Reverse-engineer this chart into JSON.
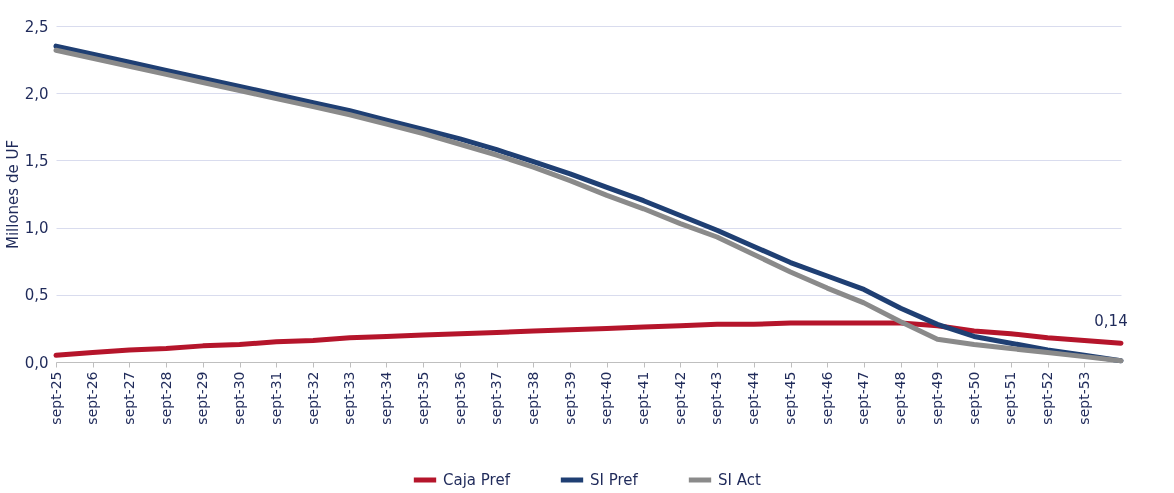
{
  "chart_data": {
    "type": "line",
    "ylabel": "Millones de UF",
    "x": [
      "2025-09",
      "2026-09",
      "2027-09",
      "2028-09",
      "2029-09",
      "2030-09",
      "2031-09",
      "2032-09",
      "2033-09",
      "2034-09",
      "2035-09",
      "2036-09",
      "2037-09",
      "2038-09",
      "2039-09",
      "2040-09",
      "2041-09",
      "2042-09",
      "2043-09",
      "2044-09",
      "2045-09",
      "2046-09",
      "2047-09",
      "2048-09",
      "2049-09",
      "2050-09",
      "2051-09",
      "2052-09",
      "2053-09",
      "2054-09"
    ],
    "series": [
      {
        "name": "Caja Pref",
        "color": "#b5152b",
        "values": [
          0.05,
          0.07,
          0.09,
          0.1,
          0.12,
          0.13,
          0.15,
          0.16,
          0.18,
          0.19,
          0.2,
          0.21,
          0.22,
          0.23,
          0.24,
          0.25,
          0.26,
          0.27,
          0.28,
          0.28,
          0.29,
          0.29,
          0.29,
          0.29,
          0.27,
          0.23,
          0.21,
          0.18,
          0.16,
          0.14
        ],
        "value_labels": [
          null,
          null,
          null,
          null,
          null,
          null,
          null,
          null,
          null,
          null,
          null,
          null,
          null,
          null,
          null,
          null,
          null,
          null,
          null,
          null,
          null,
          null,
          null,
          null,
          null,
          null,
          null,
          null,
          null,
          "0,14"
        ]
      },
      {
        "name": "SI Pref",
        "color": "#1f3f73",
        "values": [
          2.35,
          2.29,
          2.23,
          2.17,
          2.11,
          2.05,
          1.99,
          1.93,
          1.87,
          1.8,
          1.73,
          1.66,
          1.58,
          1.49,
          1.4,
          1.3,
          1.2,
          1.09,
          0.98,
          0.86,
          0.74,
          0.64,
          0.54,
          0.4,
          0.28,
          0.19,
          0.14,
          0.09,
          0.05,
          0.01
        ]
      },
      {
        "name": "SI Act",
        "color": "#8a8a8a",
        "values": [
          2.32,
          2.26,
          2.2,
          2.14,
          2.08,
          2.02,
          1.96,
          1.9,
          1.84,
          1.77,
          1.7,
          1.62,
          1.54,
          1.45,
          1.35,
          1.24,
          1.14,
          1.03,
          0.93,
          0.8,
          0.67,
          0.55,
          0.44,
          0.3,
          0.17,
          0.13,
          0.1,
          0.07,
          0.04,
          0.01
        ]
      }
    ],
    "xlim": [
      "2025-09",
      "2054-09"
    ],
    "xticks": [
      {
        "value": "2025-09",
        "label": "sept-25"
      },
      {
        "value": "2026-09",
        "label": "sept-26"
      },
      {
        "value": "2027-09",
        "label": "sept-27"
      },
      {
        "value": "2028-09",
        "label": "sept-28"
      },
      {
        "value": "2029-09",
        "label": "sept-29"
      },
      {
        "value": "2030-09",
        "label": "sept-30"
      },
      {
        "value": "2031-09",
        "label": "sept-31"
      },
      {
        "value": "2032-09",
        "label": "sept-32"
      },
      {
        "value": "2033-09",
        "label": "sept-33"
      },
      {
        "value": "2034-09",
        "label": "sept-34"
      },
      {
        "value": "2035-09",
        "label": "sept-35"
      },
      {
        "value": "2036-09",
        "label": "sept-36"
      },
      {
        "value": "2037-09",
        "label": "sept-37"
      },
      {
        "value": "2038-09",
        "label": "sept-38"
      },
      {
        "value": "2039-09",
        "label": "sept-39"
      },
      {
        "value": "2040-09",
        "label": "sept-40"
      },
      {
        "value": "2041-09",
        "label": "sept-41"
      },
      {
        "value": "2042-09",
        "label": "sept-42"
      },
      {
        "value": "2043-09",
        "label": "sept-43"
      },
      {
        "value": "2044-09",
        "label": "sept-44"
      },
      {
        "value": "2045-09",
        "label": "sept-45"
      },
      {
        "value": "2046-09",
        "label": "sept-46"
      },
      {
        "value": "2047-09",
        "label": "sept-47"
      },
      {
        "value": "2048-09",
        "label": "sept-48"
      },
      {
        "value": "2049-09",
        "label": "sept-49"
      },
      {
        "value": "2050-09",
        "label": "sept-50"
      },
      {
        "value": "2051-09",
        "label": "sept-51"
      },
      {
        "value": "2052-09",
        "label": "sept-52"
      },
      {
        "value": "2053-09",
        "label": "sept-53"
      }
    ],
    "ylim": [
      0,
      2.5
    ],
    "yticks": [
      {
        "value": 0,
        "label": "0,0"
      },
      {
        "value": 0.5,
        "label": "0,5"
      },
      {
        "value": 1,
        "label": "1,0"
      },
      {
        "value": 1.5,
        "label": "1,5"
      },
      {
        "value": 2,
        "label": "2,0"
      },
      {
        "value": 2.5,
        "label": "2,5"
      }
    ],
    "grid": "y",
    "legend": "bottom",
    "marker": "none",
    "line_style": "solid"
  }
}
